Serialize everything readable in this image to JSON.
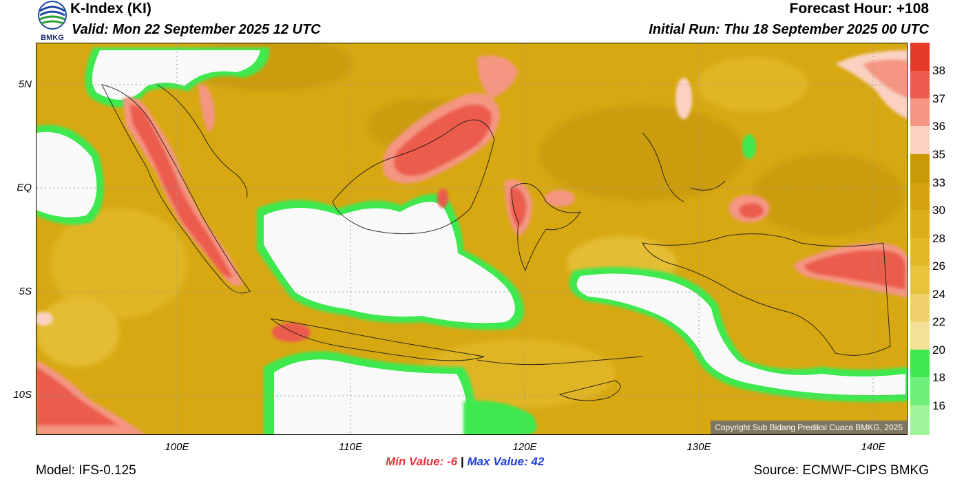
{
  "header": {
    "title": "K-Index (KI)",
    "valid": "Valid: Mon 22 September 2025 12 UTC",
    "forecast_hour": "Forecast Hour: +108",
    "initial_run": "Initial Run: Thu 18 September 2025 00 UTC",
    "logo_text": "BMKG"
  },
  "map": {
    "lat_labels": [
      "5N",
      "EQ",
      "5S",
      "10S"
    ],
    "lon_labels": [
      "100E",
      "110E",
      "120E",
      "130E",
      "140E"
    ],
    "copyright": "Copyright Sub Bidang Prediksi Cuaca BMKG, 2025",
    "colors": {
      "white": "#f9f9f9",
      "green_light": "#9ff59b",
      "green": "#3ee94f",
      "yellow": "#e8c33c",
      "gold": "#dcae1a",
      "gold_dark": "#c99a08",
      "pink_light": "#fbd1c1",
      "pink": "#f49682",
      "red": "#ec5b4d",
      "red_dark": "#e43a2a"
    }
  },
  "colorbar": {
    "labels": [
      "38",
      "37",
      "36",
      "35",
      "33",
      "30",
      "28",
      "26",
      "24",
      "22",
      "20",
      "18",
      "16"
    ],
    "colors": [
      "#e43a2a",
      "#ec5b4d",
      "#f49682",
      "#fbd1c1",
      "#c99a08",
      "#d3a20e",
      "#dcae1a",
      "#e3b92a",
      "#e8c33c",
      "#efd06a",
      "#f5e09a",
      "#3ee94f",
      "#6ff07a",
      "#9ff59b",
      "#f9f9f9"
    ]
  },
  "footer": {
    "model": "Model: IFS-0.125",
    "min_label": "Min Value:",
    "min_value": "-6",
    "separator": "|",
    "max_label": "Max Value:",
    "max_value": "42",
    "source": "Source: ECMWF-CIPS BMKG"
  }
}
